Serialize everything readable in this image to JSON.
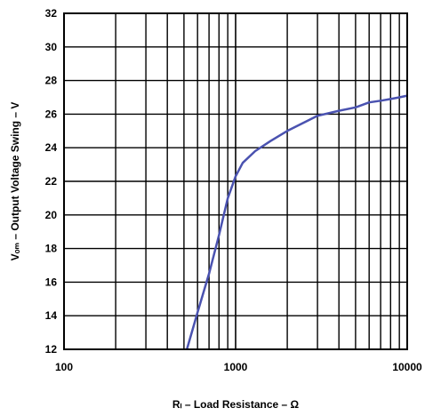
{
  "chart_data": {
    "type": "line",
    "xlabel": "Rₗ – Load Resistance – Ω",
    "ylabel": "Vₒₘ – Output Voltage Swing – V",
    "xscale": "log",
    "xlim": [
      100,
      10000
    ],
    "ylim": [
      12,
      32
    ],
    "x_tick_labels": [
      "100",
      "1000",
      "10000"
    ],
    "y_tick_labels": [
      "12",
      "14",
      "16",
      "18",
      "20",
      "22",
      "24",
      "26",
      "28",
      "30",
      "32"
    ],
    "grid": true,
    "series": [
      {
        "color": "#4a52b0",
        "points": [
          {
            "x": 520,
            "y": 12.0
          },
          {
            "x": 600,
            "y": 14.2
          },
          {
            "x": 700,
            "y": 16.5
          },
          {
            "x": 800,
            "y": 18.8
          },
          {
            "x": 900,
            "y": 21.0
          },
          {
            "x": 1000,
            "y": 22.3
          },
          {
            "x": 1100,
            "y": 23.1
          },
          {
            "x": 1300,
            "y": 23.8
          },
          {
            "x": 1600,
            "y": 24.4
          },
          {
            "x": 2000,
            "y": 25.0
          },
          {
            "x": 3000,
            "y": 25.9
          },
          {
            "x": 4000,
            "y": 26.2
          },
          {
            "x": 5000,
            "y": 26.4
          },
          {
            "x": 6000,
            "y": 26.7
          },
          {
            "x": 7000,
            "y": 26.8
          },
          {
            "x": 8000,
            "y": 26.9
          },
          {
            "x": 9000,
            "y": 27.0
          },
          {
            "x": 10000,
            "y": 27.1
          }
        ]
      }
    ]
  }
}
